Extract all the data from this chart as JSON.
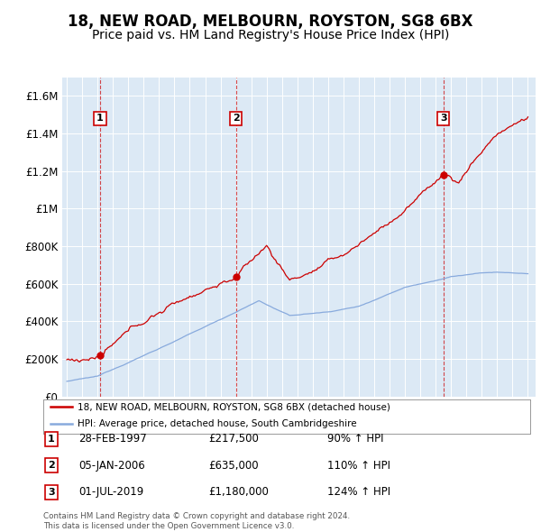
{
  "title": "18, NEW ROAD, MELBOURN, ROYSTON, SG8 6BX",
  "subtitle": "Price paid vs. HM Land Registry's House Price Index (HPI)",
  "title_fontsize": 12,
  "subtitle_fontsize": 10,
  "plot_bg_color": "#dce9f5",
  "house_color": "#cc0000",
  "hpi_color": "#88aadd",
  "ylim": [
    0,
    1700000
  ],
  "yticks": [
    0,
    200000,
    400000,
    600000,
    800000,
    1000000,
    1200000,
    1400000,
    1600000
  ],
  "ytick_labels": [
    "£0",
    "£200K",
    "£400K",
    "£600K",
    "£800K",
    "£1M",
    "£1.2M",
    "£1.4M",
    "£1.6M"
  ],
  "sale_points": [
    {
      "label": "1",
      "price": 217500,
      "x": 1997.16
    },
    {
      "label": "2",
      "price": 635000,
      "x": 2006.01
    },
    {
      "label": "3",
      "price": 1180000,
      "x": 2019.5
    }
  ],
  "legend_house": "18, NEW ROAD, MELBOURN, ROYSTON, SG8 6BX (detached house)",
  "legend_hpi": "HPI: Average price, detached house, South Cambridgeshire",
  "table_rows": [
    {
      "num": "1",
      "date": "28-FEB-1997",
      "price": "£217,500",
      "pct": "90% ↑ HPI"
    },
    {
      "num": "2",
      "date": "05-JAN-2006",
      "price": "£635,000",
      "pct": "110% ↑ HPI"
    },
    {
      "num": "3",
      "date": "01-JUL-2019",
      "price": "£1,180,000",
      "pct": "124% ↑ HPI"
    }
  ],
  "footnote": "Contains HM Land Registry data © Crown copyright and database right 2024.\nThis data is licensed under the Open Government Licence v3.0."
}
